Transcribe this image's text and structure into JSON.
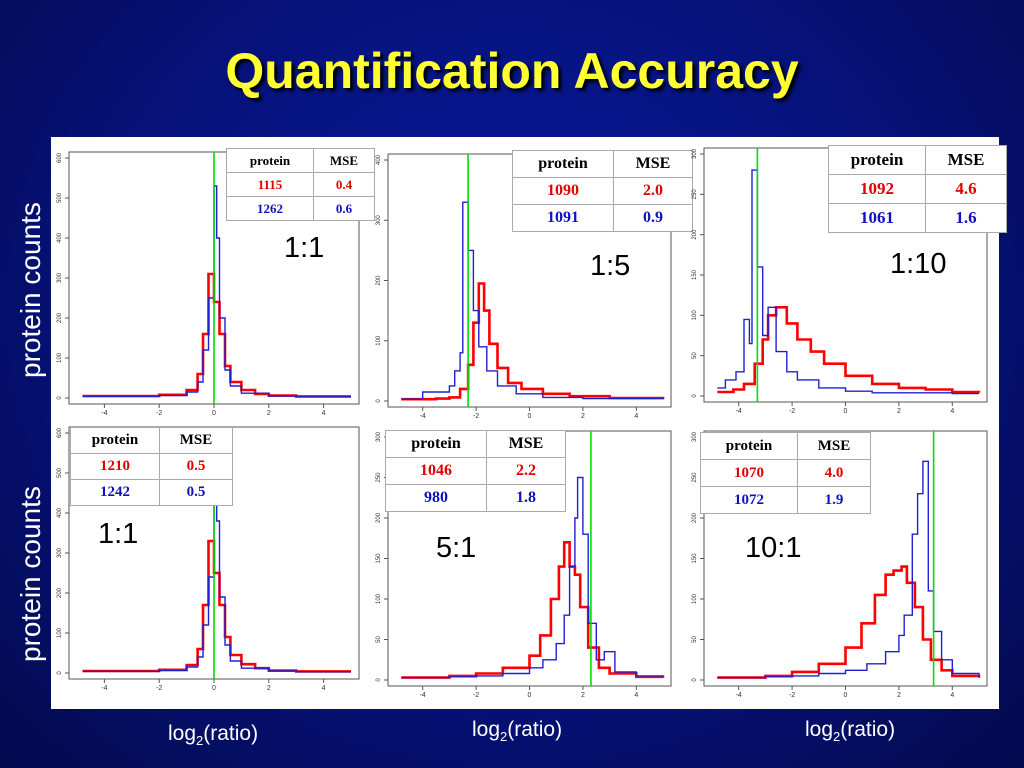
{
  "slide": {
    "title": "Quantification Accuracy",
    "ylabel_top": "protein counts",
    "ylabel_bottom": "protein counts",
    "xlabel_base": "log",
    "xlabel_sub": "2",
    "xlabel_rest": "(ratio)"
  },
  "colors": {
    "red_series": "#ff0000",
    "blue_series": "#2020d0",
    "true_ratio_line": "#00dd00"
  },
  "table_headers": {
    "protein": "protein",
    "mse": "MSE"
  },
  "chart_data": [
    {
      "type": "line",
      "ratio_label": "1:1",
      "true_log2": 0,
      "xlim": [
        -5,
        5
      ],
      "ylim": [
        0,
        600
      ],
      "x_ticks": [
        -4,
        -2,
        0,
        2,
        4
      ],
      "y_ticks": [
        0,
        100,
        200,
        300,
        400,
        500,
        600
      ],
      "table": [
        {
          "protein": "1115",
          "mse": "0.4",
          "color": "red"
        },
        {
          "protein": "1262",
          "mse": "0.6",
          "color": "blue"
        }
      ],
      "series": [
        {
          "color": "red",
          "x": [
            -4.8,
            -2,
            -1,
            -0.6,
            -0.4,
            -0.2,
            0,
            0.2,
            0.4,
            0.6,
            1,
            1.5,
            2,
            3,
            5
          ],
          "y": [
            5,
            8,
            20,
            60,
            160,
            310,
            240,
            160,
            80,
            40,
            20,
            10,
            6,
            4,
            4
          ]
        },
        {
          "color": "blue",
          "x": [
            -4.8,
            -2,
            -1,
            -0.6,
            -0.4,
            -0.2,
            0,
            0.1,
            0.2,
            0.4,
            0.6,
            1,
            2,
            3,
            5
          ],
          "y": [
            4,
            6,
            15,
            40,
            120,
            250,
            530,
            400,
            200,
            70,
            30,
            12,
            5,
            3,
            3
          ]
        }
      ]
    },
    {
      "type": "line",
      "ratio_label": "1:5",
      "true_log2": -2.3,
      "xlim": [
        -5,
        5
      ],
      "ylim": [
        0,
        400
      ],
      "x_ticks": [
        -4,
        -2,
        0,
        2,
        4
      ],
      "y_ticks": [
        0,
        100,
        200,
        300,
        400
      ],
      "table": [
        {
          "protein": "1090",
          "mse": "2.0",
          "color": "red"
        },
        {
          "protein": "1091",
          "mse": "0.9",
          "color": "blue"
        }
      ],
      "series": [
        {
          "color": "red",
          "x": [
            -4.8,
            -3.5,
            -3,
            -2.6,
            -2.3,
            -2.1,
            -1.9,
            -1.7,
            -1.5,
            -1.2,
            -0.8,
            -0.3,
            0.5,
            1.5,
            3,
            5
          ],
          "y": [
            3,
            4,
            6,
            20,
            60,
            130,
            195,
            150,
            95,
            55,
            30,
            20,
            12,
            8,
            5,
            3
          ]
        },
        {
          "color": "blue",
          "x": [
            -4.8,
            -4,
            -3,
            -2.8,
            -2.6,
            -2.5,
            -2.3,
            -2.1,
            -1.9,
            -1.6,
            -1.2,
            -0.5,
            0.5,
            2,
            5
          ],
          "y": [
            3,
            15,
            25,
            50,
            80,
            330,
            250,
            150,
            90,
            50,
            25,
            12,
            6,
            4,
            3
          ]
        }
      ]
    },
    {
      "type": "line",
      "ratio_label": "1:10",
      "true_log2": -3.3,
      "xlim": [
        -5,
        5
      ],
      "ylim": [
        0,
        300
      ],
      "x_ticks": [
        -4,
        -2,
        0,
        2,
        4
      ],
      "y_ticks": [
        0,
        50,
        100,
        150,
        200,
        250,
        300
      ],
      "table": [
        {
          "protein": "1092",
          "mse": "4.6",
          "color": "red"
        },
        {
          "protein": "1061",
          "mse": "1.6",
          "color": "blue"
        }
      ],
      "series": [
        {
          "color": "red",
          "x": [
            -4.8,
            -4.2,
            -3.8,
            -3.4,
            -3.1,
            -2.9,
            -2.6,
            -2.2,
            -1.8,
            -1.3,
            -0.8,
            0,
            1,
            2,
            3,
            4,
            5
          ],
          "y": [
            5,
            8,
            15,
            40,
            70,
            100,
            110,
            90,
            70,
            55,
            40,
            25,
            15,
            10,
            8,
            5,
            4
          ]
        },
        {
          "color": "blue",
          "x": [
            -4.8,
            -4.5,
            -4.1,
            -3.8,
            -3.6,
            -3.5,
            -3.3,
            -3.1,
            -2.9,
            -2.6,
            -2.2,
            -1.8,
            -1,
            0,
            1,
            2,
            4,
            5
          ],
          "y": [
            10,
            20,
            30,
            95,
            65,
            280,
            160,
            75,
            110,
            55,
            30,
            20,
            10,
            6,
            4,
            4,
            3,
            3
          ]
        }
      ]
    },
    {
      "type": "line",
      "ratio_label": "1:1",
      "true_log2": 0,
      "xlim": [
        -5,
        5
      ],
      "ylim": [
        0,
        600
      ],
      "x_ticks": [
        -4,
        -2,
        0,
        2,
        4
      ],
      "y_ticks": [
        0,
        100,
        200,
        300,
        400,
        500,
        600
      ],
      "table": [
        {
          "protein": "1210",
          "mse": "0.5",
          "color": "red"
        },
        {
          "protein": "1242",
          "mse": "0.5",
          "color": "blue"
        }
      ],
      "series": [
        {
          "color": "red",
          "x": [
            -4.8,
            -2,
            -1,
            -0.6,
            -0.4,
            -0.2,
            0,
            0.2,
            0.4,
            0.6,
            1,
            1.5,
            2,
            3,
            5
          ],
          "y": [
            5,
            8,
            20,
            60,
            170,
            330,
            250,
            170,
            90,
            45,
            22,
            12,
            6,
            4,
            4
          ]
        },
        {
          "color": "blue",
          "x": [
            -4.8,
            -2,
            -1,
            -0.6,
            -0.4,
            -0.2,
            0,
            0.1,
            0.2,
            0.4,
            0.6,
            1,
            2,
            3,
            5
          ],
          "y": [
            4,
            6,
            15,
            40,
            120,
            240,
            520,
            380,
            190,
            70,
            30,
            12,
            5,
            3,
            3
          ]
        }
      ]
    },
    {
      "type": "line",
      "ratio_label": "5:1",
      "true_log2": 2.3,
      "xlim": [
        -5,
        5
      ],
      "ylim": [
        0,
        300
      ],
      "x_ticks": [
        -4,
        -2,
        0,
        2,
        4
      ],
      "y_ticks": [
        0,
        50,
        100,
        150,
        200,
        250,
        300
      ],
      "table": [
        {
          "protein": "1046",
          "mse": "2.2",
          "color": "red"
        },
        {
          "protein": "980",
          "mse": "1.8",
          "color": "blue"
        }
      ],
      "series": [
        {
          "color": "red",
          "x": [
            -4.8,
            -3,
            -2,
            -1,
            0,
            0.4,
            0.8,
            1.1,
            1.3,
            1.5,
            1.7,
            1.9,
            2.2,
            2.6,
            3,
            4,
            5
          ],
          "y": [
            3,
            5,
            8,
            15,
            30,
            55,
            100,
            140,
            170,
            140,
            130,
            90,
            40,
            15,
            8,
            4,
            3
          ]
        },
        {
          "color": "blue",
          "x": [
            -4.8,
            -3,
            -2,
            -1,
            0,
            0.5,
            1,
            1.3,
            1.5,
            1.7,
            1.8,
            2,
            2.2,
            2.5,
            2.8,
            3.2,
            4,
            5
          ],
          "y": [
            3,
            4,
            5,
            8,
            15,
            25,
            45,
            80,
            140,
            200,
            250,
            180,
            70,
            25,
            35,
            10,
            5,
            3
          ]
        }
      ]
    },
    {
      "type": "line",
      "ratio_label": "10:1",
      "true_log2": 3.3,
      "xlim": [
        -5,
        5
      ],
      "ylim": [
        0,
        300
      ],
      "x_ticks": [
        -4,
        -2,
        0,
        2,
        4
      ],
      "y_ticks": [
        0,
        50,
        100,
        150,
        200,
        250,
        300
      ],
      "table": [
        {
          "protein": "1070",
          "mse": "4.0",
          "color": "red"
        },
        {
          "protein": "1072",
          "mse": "1.9",
          "color": "blue"
        }
      ],
      "series": [
        {
          "color": "red",
          "x": [
            -4.8,
            -3,
            -2,
            -1,
            0,
            0.6,
            1.1,
            1.5,
            1.8,
            2.1,
            2.3,
            2.6,
            2.9,
            3.2,
            3.6,
            4,
            5
          ],
          "y": [
            3,
            5,
            10,
            20,
            40,
            70,
            105,
            130,
            135,
            140,
            120,
            90,
            50,
            25,
            12,
            5,
            3
          ]
        },
        {
          "color": "blue",
          "x": [
            -4.8,
            -3,
            -2,
            -1,
            0,
            0.8,
            1.5,
            2,
            2.2,
            2.5,
            2.7,
            2.9,
            3.1,
            3.3,
            3.6,
            4,
            5
          ],
          "y": [
            3,
            4,
            5,
            8,
            12,
            20,
            35,
            55,
            80,
            180,
            230,
            270,
            110,
            60,
            25,
            8,
            3
          ]
        }
      ]
    }
  ]
}
